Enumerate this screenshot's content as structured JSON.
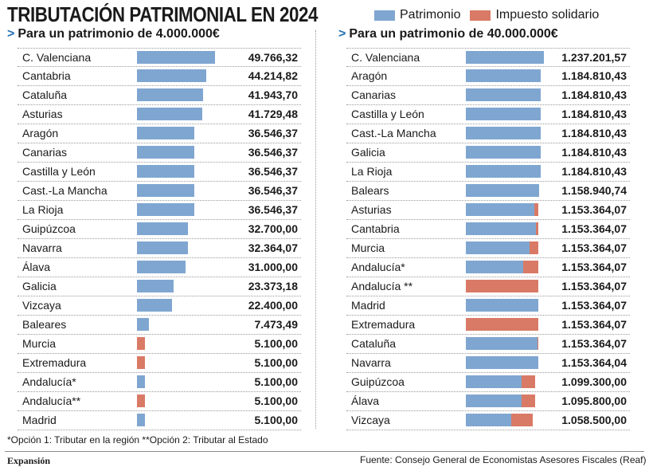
{
  "title": "TRIBUTACIÓN PATRIMONIAL EN 2024",
  "legend": [
    {
      "label": "Patrimonio",
      "color": "#7fa6d1"
    },
    {
      "label": "Impuesto solidario",
      "color": "#d97a66"
    }
  ],
  "chart_data": [
    {
      "type": "bar",
      "orientation": "horizontal",
      "stacked": true,
      "title": "Para un patrimonio de 4.000.000€",
      "xlim": [
        0,
        49766.32
      ],
      "categories": [
        "C. Valenciana",
        "Cantabria",
        "Cataluña",
        "Asturias",
        "Aragón",
        "Canarias",
        "Castilla y León",
        "Cast.-La Mancha",
        "La Rioja",
        "Guipúzcoa",
        "Navarra",
        "Álava",
        "Galicia",
        "Vizcaya",
        "Baleares",
        "Murcia",
        "Extremadura",
        "Andalucía*",
        "Andalucía**",
        "Madrid"
      ],
      "labels": [
        "49.766,32",
        "44.214,82",
        "41.943,70",
        "41.729,48",
        "36.546,37",
        "36.546,37",
        "36.546,37",
        "36.546,37",
        "36.546,37",
        "32.700,00",
        "32.364,07",
        "31.000,00",
        "23.373,18",
        "22.400,00",
        "7.473,49",
        "5.100,00",
        "5.100,00",
        "5.100,00",
        "5.100,00",
        "5.100,00"
      ],
      "series": [
        {
          "name": "Patrimonio",
          "values": [
            49766.32,
            44214.82,
            41943.7,
            41729.48,
            36546.37,
            36546.37,
            36546.37,
            36546.37,
            36546.37,
            32700.0,
            32364.07,
            31000.0,
            23373.18,
            22400.0,
            7473.49,
            0,
            0,
            5100.0,
            0,
            5100.0
          ]
        },
        {
          "name": "Impuesto solidario",
          "values": [
            0,
            0,
            0,
            0,
            0,
            0,
            0,
            0,
            0,
            0,
            0,
            0,
            0,
            0,
            0,
            5100.0,
            5100.0,
            0,
            5100.0,
            0
          ]
        }
      ]
    },
    {
      "type": "bar",
      "orientation": "horizontal",
      "stacked": true,
      "title": "Para un patrimonio de 40.000.000€",
      "xlim": [
        0,
        1237201.57
      ],
      "categories": [
        "C. Valenciana",
        "Aragón",
        "Canarias",
        "Castilla y León",
        "Cast.-La Mancha",
        "Galicia",
        "La Rioja",
        "Balears",
        "Asturias",
        "Cantabria",
        "Murcia",
        "Andalucía*",
        "Andalucía **",
        "Madrid",
        "Extremadura",
        "Cataluña",
        "Navarra",
        "Guipúzcoa",
        "Álava",
        "Vizcaya"
      ],
      "labels": [
        "1.237.201,57",
        "1.184.810,43",
        "1.184.810,43",
        "1.184.810,43",
        "1.184.810,43",
        "1.184.810,43",
        "1.184.810,43",
        "1.158.940,74",
        "1.153.364,07",
        "1.153.364,07",
        "1.153.364,07",
        "1.153.364,07",
        "1.153.364,07",
        "1.153.364,07",
        "1.153.364,07",
        "1.153.364,07",
        "1.153.364,04",
        "1.099.300,00",
        "1.095.800,00",
        "1.058.500,00"
      ],
      "series": [
        {
          "name": "Patrimonio",
          "values": [
            1237201.57,
            1184810.43,
            1184810.43,
            1184810.43,
            1184810.43,
            1184810.43,
            1184810.43,
            1158940.74,
            1080000,
            1105000,
            1005000,
            905000,
            0,
            1153364.07,
            0,
            1130000,
            1153364.04,
            890000,
            880000,
            720000
          ]
        },
        {
          "name": "Impuesto solidario",
          "values": [
            0,
            0,
            0,
            0,
            0,
            0,
            0,
            0,
            73364.07,
            48364.07,
            148364.07,
            248364.07,
            1153364.07,
            0,
            1153364.07,
            23364.07,
            0,
            209300,
            215800,
            338500
          ]
        }
      ]
    }
  ],
  "footnote": "*Opción 1: Tributar en la región  **Opción 2: Tributar al Estado",
  "brand": "Expansión",
  "source": "Fuente:  Consejo General de Economistas Asesores Fiscales (Reaf)"
}
